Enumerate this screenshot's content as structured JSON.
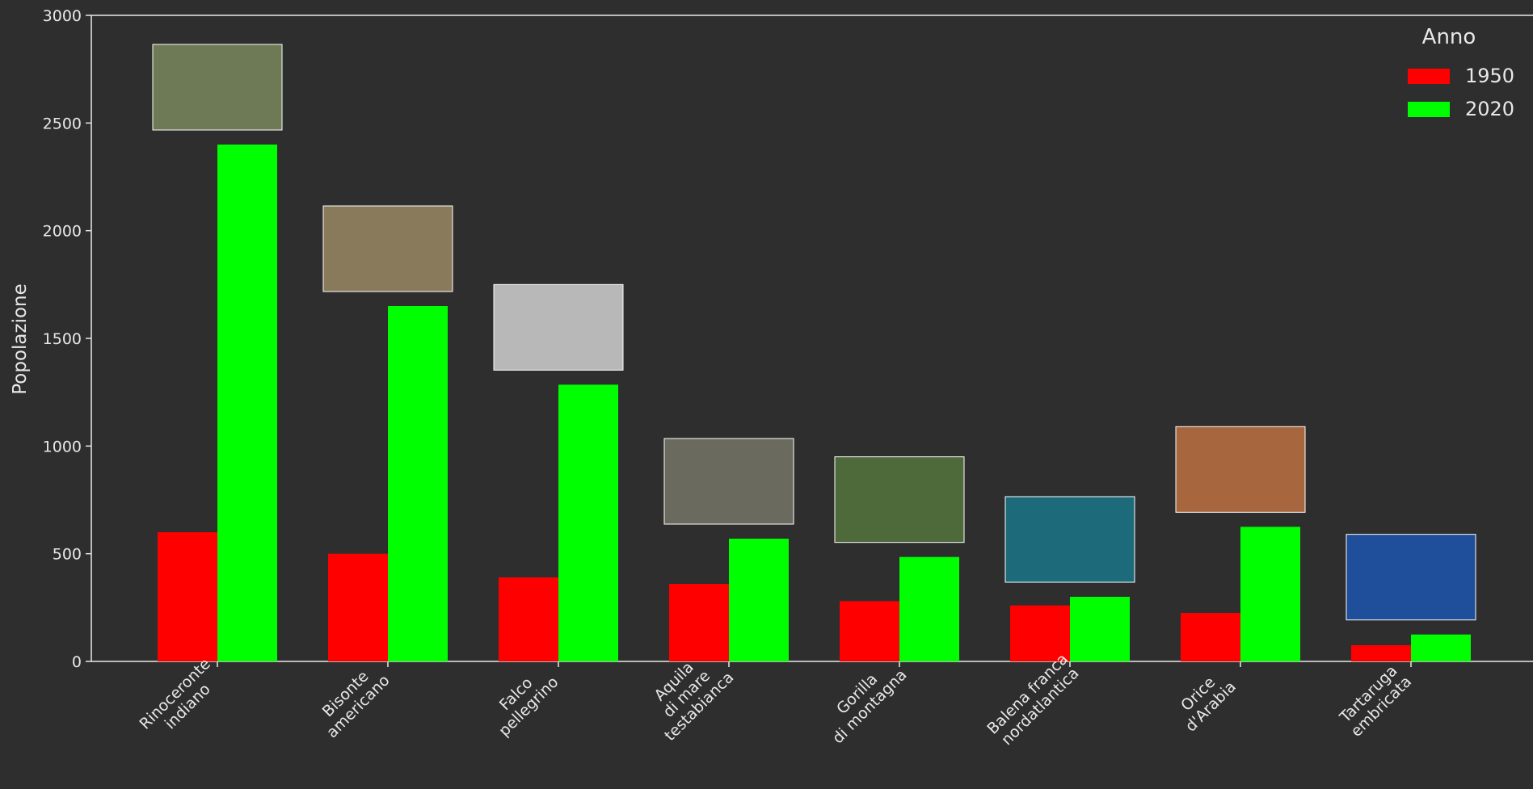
{
  "chart_data": {
    "type": "bar",
    "ylabel": "Popolazione",
    "categories": [
      [
        "Rinoceronte",
        "indiano"
      ],
      [
        "Bisonte",
        "americano"
      ],
      [
        "Falco",
        "pellegrino"
      ],
      [
        "Aquila",
        "di mare",
        "testabianca"
      ],
      [
        "Gorilla",
        "di montagna"
      ],
      [
        "Balena franca",
        "nordatlantica"
      ],
      [
        "Orice",
        "d'Arabia"
      ],
      [
        "Tartaruga",
        "embricata"
      ]
    ],
    "series": [
      {
        "name": "1950",
        "color": "#ff0000",
        "values": [
          600,
          500,
          390,
          360,
          280,
          260,
          225,
          75
        ]
      },
      {
        "name": "2020",
        "color": "#00ff00",
        "values": [
          2400,
          1650,
          1285,
          570,
          485,
          300,
          625,
          125
        ]
      }
    ],
    "legend_title": "Anno",
    "legend": "upper right",
    "ylim": [
      0,
      3000
    ],
    "yticks": [
      0,
      500,
      1000,
      1500,
      2000,
      2500,
      3000
    ]
  }
}
